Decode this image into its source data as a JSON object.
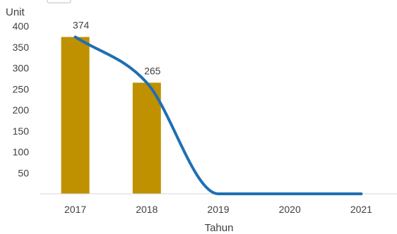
{
  "chart_data": {
    "type": "bar",
    "categories": [
      "2017",
      "2018",
      "2019",
      "2020",
      "2021"
    ],
    "ylabel": "Unit",
    "xlabel": "Tahun",
    "ylim": [
      0,
      400
    ],
    "yticks": [
      50,
      100,
      150,
      200,
      250,
      300,
      350,
      400
    ],
    "grid": false,
    "legend": "none",
    "series": [
      {
        "type": "bar",
        "values": [
          374,
          265,
          null,
          null,
          null
        ],
        "data_labels": [
          "374",
          "265",
          "",
          "",
          ""
        ],
        "color": "#BF9000"
      },
      {
        "type": "line",
        "smooth": true,
        "values": [
          374,
          265,
          0,
          0,
          0
        ],
        "color": "#1F6FB2"
      }
    ]
  }
}
